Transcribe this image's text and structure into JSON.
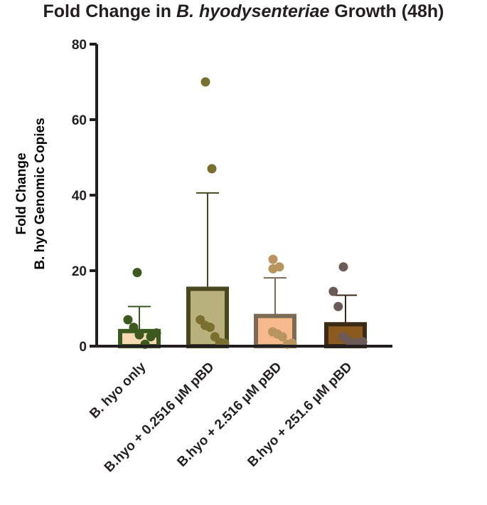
{
  "chart_data": {
    "type": "bar",
    "title_prefix": "Fold Change in ",
    "title_italic": "B. hyodysenteriae",
    "title_suffix": " Growth (48h)",
    "ylabel_line1": "Fold Change",
    "ylabel_line2": "B. hyo Genomic Copies",
    "xlabel": "",
    "ylim": [
      0,
      80
    ],
    "yticks": [
      0,
      20,
      40,
      60,
      80
    ],
    "yticklabels": [
      "0",
      "20",
      "40",
      "60",
      "80"
    ],
    "categories": [
      "B. hyo only",
      "B.hyo + 0.2516 µM pBD",
      "B.hyo + 2.516 µM pBD",
      "B.hyo + 251.6 µM pBD"
    ],
    "means": [
      4,
      15.2,
      8,
      5.8
    ],
    "error_upper": [
      10.5,
      40.6,
      18.1,
      13.5
    ],
    "points": [
      [
        19.5,
        7,
        5,
        3,
        0.5,
        2.5,
        3.5
      ],
      [
        70,
        47,
        7,
        5.5,
        5,
        2.5,
        1,
        0.8
      ],
      [
        23,
        21,
        20.5,
        3.8,
        3.2,
        2.5,
        0.5,
        0.8
      ],
      [
        21,
        14.5,
        10.5,
        2.5,
        1.5,
        1,
        0.8,
        1.2
      ]
    ],
    "colors": {
      "fills": [
        "#f7d9b4",
        "#b8b17d",
        "#f5b98b",
        "#8b5a1e"
      ],
      "outlines": [
        "#3c5a20",
        "#48471f",
        "#7d6a55",
        "#3a2a16"
      ],
      "dots": [
        "#3c5a20",
        "#7a6f2e",
        "#b8945e",
        "#6b5a55"
      ],
      "axis": "#231f20"
    }
  }
}
